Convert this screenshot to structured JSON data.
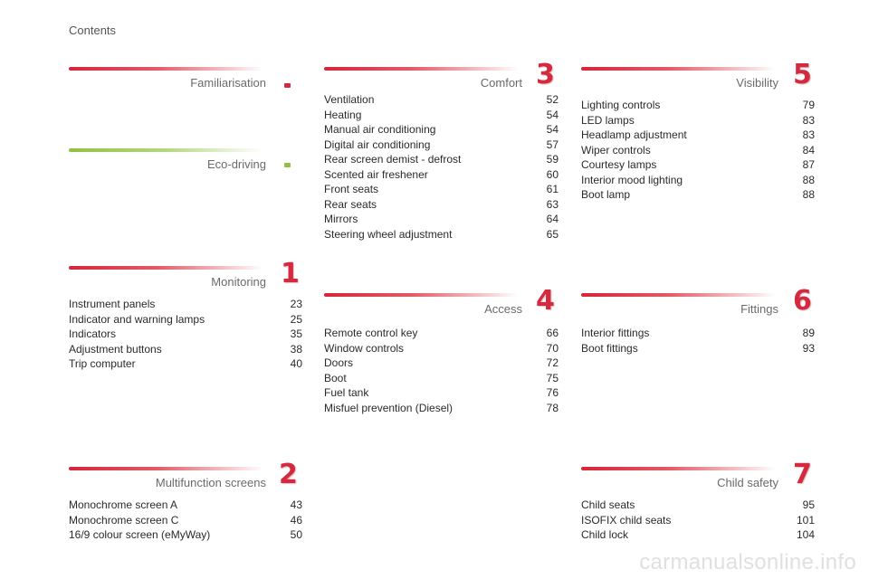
{
  "header": {
    "title": "Contents"
  },
  "sections": {
    "familiarisation": {
      "title": "Familiarisation",
      "items": []
    },
    "eco_driving": {
      "title": "Eco-driving",
      "items": []
    },
    "monitoring": {
      "title": "Monitoring",
      "number": "1",
      "items": [
        {
          "label": "Instrument panels",
          "page": "23"
        },
        {
          "label": "Indicator and warning lamps",
          "page": "25"
        },
        {
          "label": "Indicators",
          "page": "35"
        },
        {
          "label": "Adjustment buttons",
          "page": "38"
        },
        {
          "label": "Trip computer",
          "page": "40"
        }
      ]
    },
    "multifunction": {
      "title": "Multifunction screens",
      "number": "2",
      "items": [
        {
          "label": "Monochrome screen A",
          "page": "43"
        },
        {
          "label": "Monochrome screen C",
          "page": "46"
        },
        {
          "label": "16/9 colour screen (eMyWay)",
          "page": "50"
        }
      ]
    },
    "comfort": {
      "title": "Comfort",
      "number": "3",
      "items": [
        {
          "label": "Ventilation",
          "page": "52"
        },
        {
          "label": "Heating",
          "page": "54"
        },
        {
          "label": "Manual air conditioning",
          "page": "54"
        },
        {
          "label": "Digital air conditioning",
          "page": "57"
        },
        {
          "label": "Rear screen demist - defrost",
          "page": "59"
        },
        {
          "label": "Scented air freshener",
          "page": "60"
        },
        {
          "label": "Front seats",
          "page": "61"
        },
        {
          "label": "Rear seats",
          "page": "63"
        },
        {
          "label": "Mirrors",
          "page": "64"
        },
        {
          "label": "Steering wheel adjustment",
          "page": "65"
        }
      ]
    },
    "access": {
      "title": "Access",
      "number": "4",
      "items": [
        {
          "label": "Remote control key",
          "page": "66"
        },
        {
          "label": "Window controls",
          "page": "70"
        },
        {
          "label": "Doors",
          "page": "72"
        },
        {
          "label": "Boot",
          "page": "75"
        },
        {
          "label": "Fuel tank",
          "page": "76"
        },
        {
          "label": "Misfuel prevention (Diesel)",
          "page": "78"
        }
      ]
    },
    "visibility": {
      "title": "Visibility",
      "number": "5",
      "items": [
        {
          "label": "Lighting controls",
          "page": "79"
        },
        {
          "label": "LED lamps",
          "page": "83"
        },
        {
          "label": "Headlamp adjustment",
          "page": "83"
        },
        {
          "label": "Wiper controls",
          "page": "84"
        },
        {
          "label": "Courtesy lamps",
          "page": "87"
        },
        {
          "label": "Interior mood lighting",
          "page": "88"
        },
        {
          "label": "Boot lamp",
          "page": "88"
        }
      ]
    },
    "fittings": {
      "title": "Fittings",
      "number": "6",
      "items": [
        {
          "label": "Interior fittings",
          "page": "89"
        },
        {
          "label": "Boot fittings",
          "page": "93"
        }
      ]
    },
    "child_safety": {
      "title": "Child safety",
      "number": "7",
      "items": [
        {
          "label": "Child seats",
          "page": "95"
        },
        {
          "label": "ISOFIX child seats",
          "page": "101"
        },
        {
          "label": "Child lock",
          "page": "104"
        }
      ]
    }
  },
  "watermark": "carmanualsonline.info",
  "colors": {
    "accent_red": "#d42a3f",
    "accent_green": "#8fc23f"
  }
}
